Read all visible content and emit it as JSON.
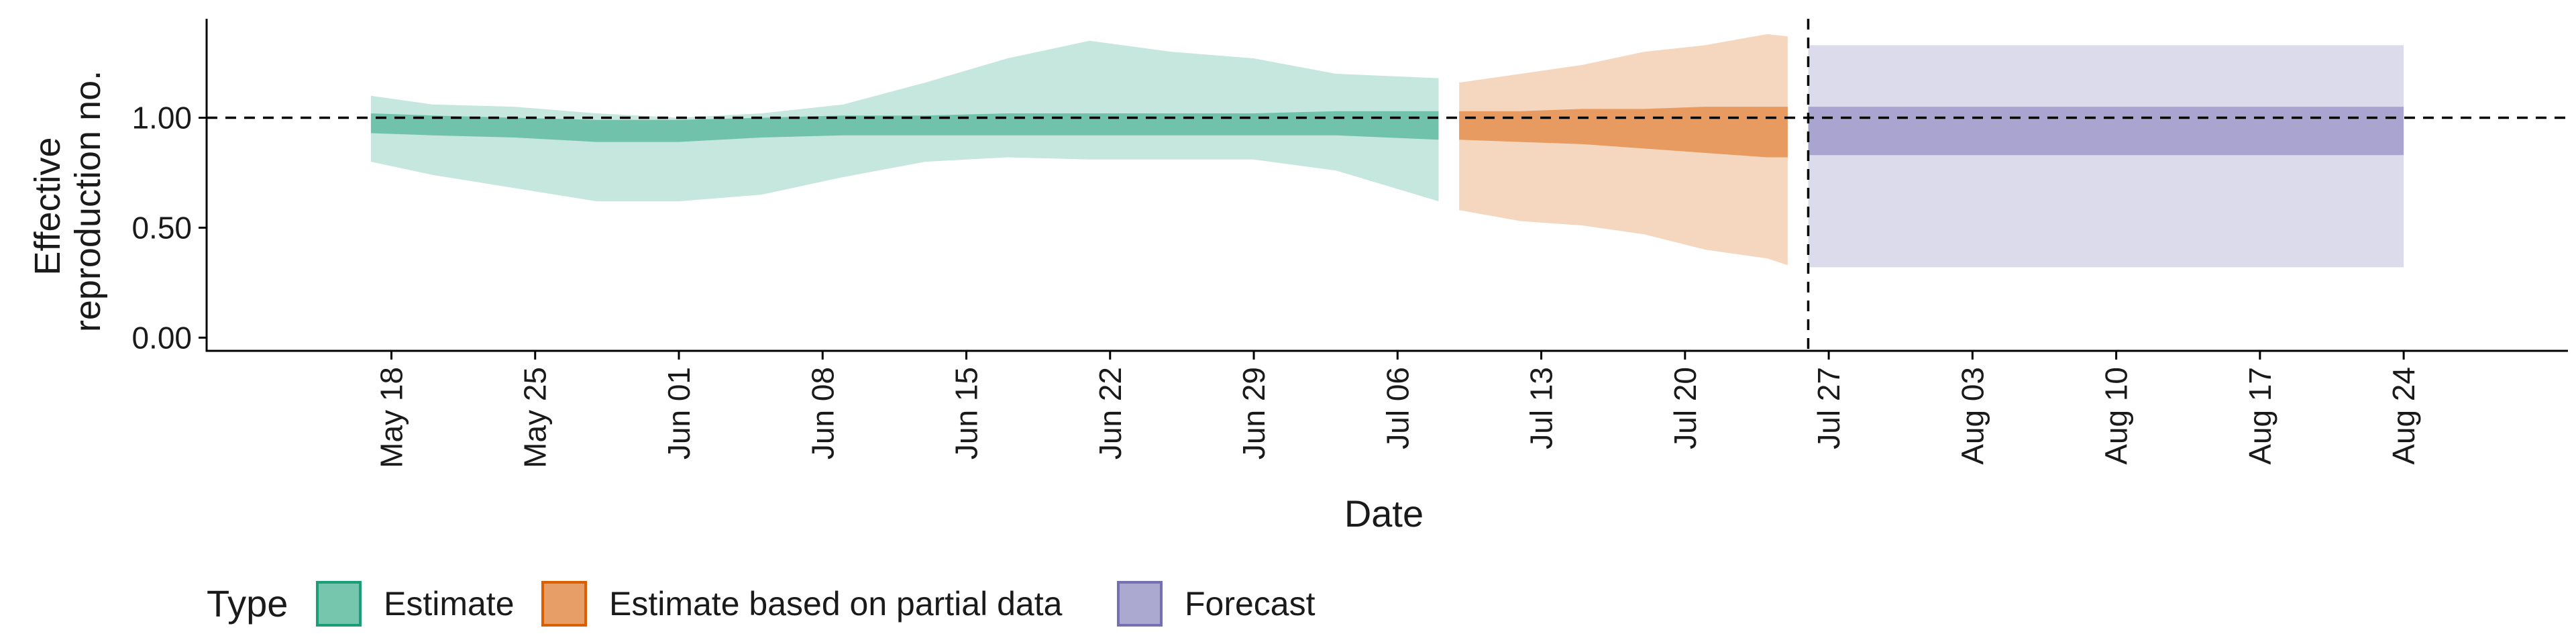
{
  "chart_data": {
    "type": "area",
    "xlabel": "Date",
    "ylabel_lines": [
      "Effective",
      "reproduction no."
    ],
    "y_ticks": [
      {
        "value": 0.0,
        "label": "0.00"
      },
      {
        "value": 0.5,
        "label": "0.50"
      },
      {
        "value": 1.0,
        "label": "1.00"
      }
    ],
    "ylim": [
      -0.06,
      1.45
    ],
    "xlim": [
      "2020-05-09",
      "2020-09-01"
    ],
    "x_ticks": [
      {
        "date": "2020-05-18",
        "label": "May 18"
      },
      {
        "date": "2020-05-25",
        "label": "May 25"
      },
      {
        "date": "2020-06-01",
        "label": "Jun 01"
      },
      {
        "date": "2020-06-08",
        "label": "Jun 08"
      },
      {
        "date": "2020-06-15",
        "label": "Jun 15"
      },
      {
        "date": "2020-06-22",
        "label": "Jun 22"
      },
      {
        "date": "2020-06-29",
        "label": "Jun 29"
      },
      {
        "date": "2020-07-06",
        "label": "Jul 06"
      },
      {
        "date": "2020-07-13",
        "label": "Jul 13"
      },
      {
        "date": "2020-07-20",
        "label": "Jul 20"
      },
      {
        "date": "2020-07-27",
        "label": "Jul 27"
      },
      {
        "date": "2020-08-03",
        "label": "Aug 03"
      },
      {
        "date": "2020-08-10",
        "label": "Aug 10"
      },
      {
        "date": "2020-08-17",
        "label": "Aug 17"
      },
      {
        "date": "2020-08-24",
        "label": "Aug 24"
      }
    ],
    "reference_line_y": 1.0,
    "vertical_line_date": "2020-07-26",
    "legend": {
      "title": "Type",
      "position": "bottom-left",
      "items": [
        {
          "label": "Estimate",
          "color": "#1b9e77"
        },
        {
          "label": "Estimate based on partial data",
          "color": "#d95f02"
        },
        {
          "label": "Forecast",
          "color": "#7570b3"
        }
      ]
    },
    "series": [
      {
        "name": "Estimate",
        "color": "#1b9e77",
        "points": [
          {
            "date": "2020-05-17",
            "lower90": 0.8,
            "upper90": 1.1,
            "lower50": 0.93,
            "upper50": 1.02
          },
          {
            "date": "2020-05-20",
            "lower90": 0.74,
            "upper90": 1.06,
            "lower50": 0.92,
            "upper50": 1.01
          },
          {
            "date": "2020-05-24",
            "lower90": 0.68,
            "upper90": 1.05,
            "lower50": 0.91,
            "upper50": 1.0
          },
          {
            "date": "2020-05-28",
            "lower90": 0.62,
            "upper90": 1.02,
            "lower50": 0.89,
            "upper50": 0.99
          },
          {
            "date": "2020-06-01",
            "lower90": 0.62,
            "upper90": 1.0,
            "lower50": 0.89,
            "upper50": 0.99
          },
          {
            "date": "2020-06-05",
            "lower90": 0.65,
            "upper90": 1.02,
            "lower50": 0.91,
            "upper50": 1.0
          },
          {
            "date": "2020-06-09",
            "lower90": 0.73,
            "upper90": 1.06,
            "lower50": 0.92,
            "upper50": 1.01
          },
          {
            "date": "2020-06-13",
            "lower90": 0.8,
            "upper90": 1.16,
            "lower50": 0.92,
            "upper50": 1.01
          },
          {
            "date": "2020-06-17",
            "lower90": 0.82,
            "upper90": 1.27,
            "lower50": 0.92,
            "upper50": 1.02
          },
          {
            "date": "2020-06-21",
            "lower90": 0.81,
            "upper90": 1.35,
            "lower50": 0.92,
            "upper50": 1.02
          },
          {
            "date": "2020-06-25",
            "lower90": 0.81,
            "upper90": 1.3,
            "lower50": 0.92,
            "upper50": 1.02
          },
          {
            "date": "2020-06-29",
            "lower90": 0.81,
            "upper90": 1.27,
            "lower50": 0.92,
            "upper50": 1.02
          },
          {
            "date": "2020-07-03",
            "lower90": 0.76,
            "upper90": 1.2,
            "lower50": 0.92,
            "upper50": 1.03
          },
          {
            "date": "2020-07-08",
            "lower90": 0.62,
            "upper90": 1.18,
            "lower50": 0.9,
            "upper50": 1.03
          }
        ]
      },
      {
        "name": "Estimate based on partial data",
        "color": "#d95f02",
        "points": [
          {
            "date": "2020-07-09",
            "lower90": 0.58,
            "upper90": 1.16,
            "lower50": 0.9,
            "upper50": 1.03
          },
          {
            "date": "2020-07-12",
            "lower90": 0.53,
            "upper90": 1.2,
            "lower50": 0.89,
            "upper50": 1.03
          },
          {
            "date": "2020-07-15",
            "lower90": 0.51,
            "upper90": 1.24,
            "lower50": 0.88,
            "upper50": 1.04
          },
          {
            "date": "2020-07-18",
            "lower90": 0.47,
            "upper90": 1.3,
            "lower50": 0.86,
            "upper50": 1.04
          },
          {
            "date": "2020-07-21",
            "lower90": 0.4,
            "upper90": 1.33,
            "lower50": 0.84,
            "upper50": 1.05
          },
          {
            "date": "2020-07-24",
            "lower90": 0.36,
            "upper90": 1.38,
            "lower50": 0.82,
            "upper50": 1.05
          },
          {
            "date": "2020-07-25",
            "lower90": 0.33,
            "upper90": 1.37,
            "lower50": 0.82,
            "upper50": 1.05
          }
        ]
      },
      {
        "name": "Forecast",
        "color": "#7570b3",
        "points": [
          {
            "date": "2020-07-26",
            "lower90": 0.32,
            "upper90": 1.33,
            "lower50": 0.83,
            "upper50": 1.05
          },
          {
            "date": "2020-08-24",
            "lower90": 0.32,
            "upper90": 1.33,
            "lower50": 0.83,
            "upper50": 1.05
          }
        ]
      }
    ]
  }
}
